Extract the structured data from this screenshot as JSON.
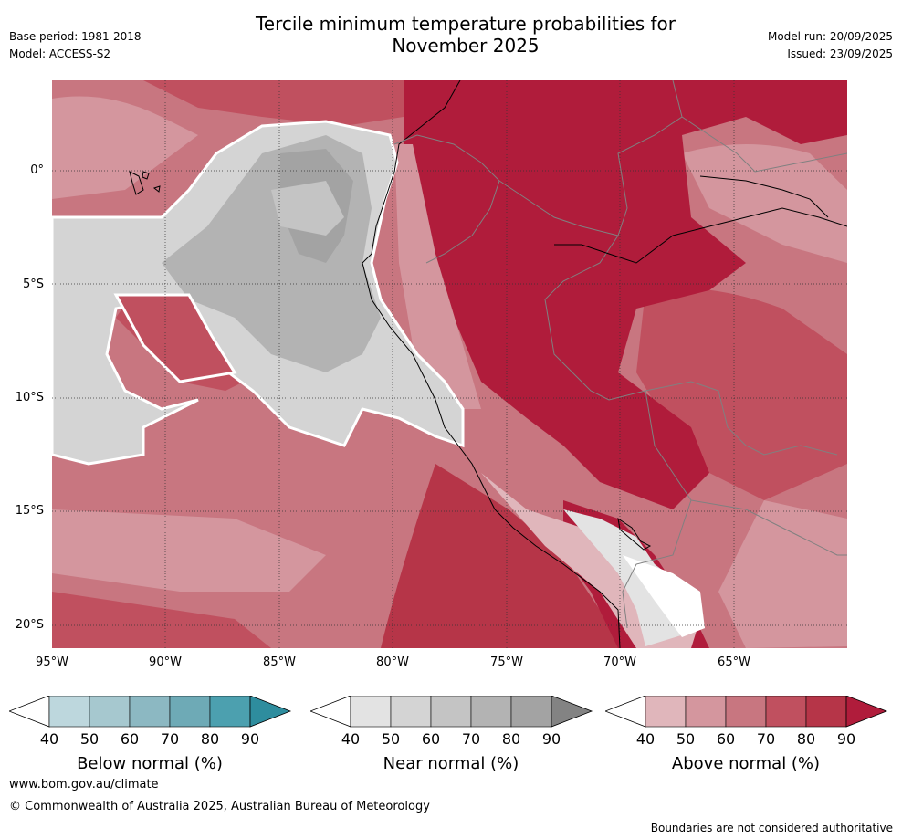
{
  "header": {
    "title_line1": "Tercile minimum temperature probabilities for",
    "title_line2": "November 2025",
    "base_period": "Base period: 1981-2018",
    "model": "Model: ACCESS-S2",
    "model_run": "Model run: 20/09/2025",
    "issued": "Issued: 23/09/2025"
  },
  "map": {
    "lat_labels": [
      "0°",
      "5°S",
      "10°S",
      "15°S",
      "20°S"
    ],
    "lon_labels": [
      "95°W",
      "90°W",
      "85°W",
      "80°W",
      "75°W",
      "70°W",
      "65°W"
    ]
  },
  "colorbars": [
    {
      "title": "Below normal (%)",
      "ticks": [
        "40",
        "50",
        "60",
        "70",
        "80",
        "90"
      ],
      "colors": [
        "#bdd7dd",
        "#a6c8cf",
        "#8cb8c2",
        "#6eaab6",
        "#4ca0af",
        "#2e8d9e"
      ]
    },
    {
      "title": "Near normal (%)",
      "ticks": [
        "40",
        "50",
        "60",
        "70",
        "80",
        "90"
      ],
      "colors": [
        "#e3e3e3",
        "#d4d4d4",
        "#c4c4c4",
        "#b3b3b3",
        "#a3a3a3",
        "#838383"
      ]
    },
    {
      "title": "Above normal (%)",
      "ticks": [
        "40",
        "50",
        "60",
        "70",
        "80",
        "90"
      ],
      "colors": [
        "#e0b6bb",
        "#d4969e",
        "#c87680",
        "#c0505f",
        "#b63548",
        "#b01c3b"
      ]
    }
  ],
  "footer": {
    "url": "www.bom.gov.au/climate",
    "copyright": "© Commonwealth of Australia 2025, Australian Bureau of Meteorology",
    "disclaimer": "Boundaries are not considered authoritative"
  }
}
